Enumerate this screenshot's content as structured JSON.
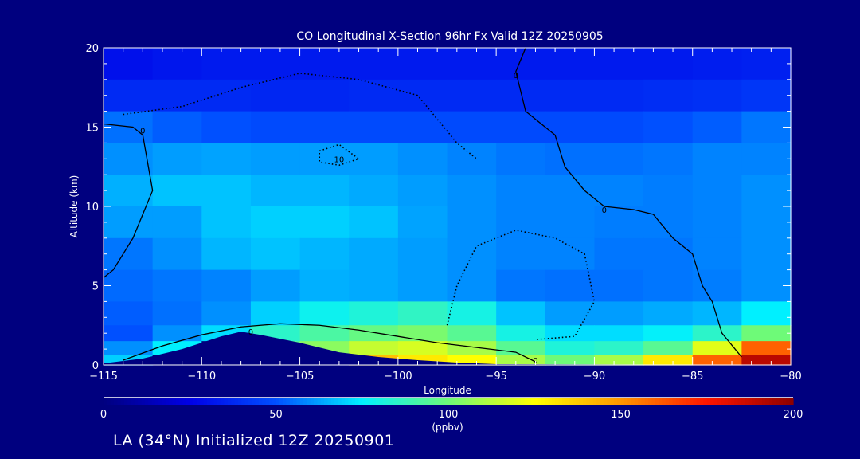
{
  "chart_data": {
    "type": "heatmap",
    "title": "CO Longitudinal X-Section 96hr  Fx Valid 12Z 20250905",
    "xlabel": "Longitude",
    "ylabel": "Altitude (km)",
    "xlim": [
      -115,
      -80
    ],
    "ylim": [
      0,
      20
    ],
    "xticks": [
      -115,
      -110,
      -105,
      -100,
      -95,
      -90,
      -85,
      -80
    ],
    "xtick_labels": [
      "−115",
      "−110",
      "−105",
      "−100",
      "−95",
      "−90",
      "−85",
      "−80"
    ],
    "yticks": [
      0,
      5,
      10,
      15,
      20
    ],
    "ytick_labels": [
      "0",
      "5",
      "10",
      "15",
      "20"
    ],
    "x": [
      -113.75,
      -111.25,
      -108.75,
      -106.25,
      -103.75,
      -101.25,
      -98.75,
      -96.25,
      -93.75,
      -91.25,
      -88.75,
      -86.25,
      -83.75,
      -81.25
    ],
    "y": [
      19,
      17,
      15,
      13,
      11,
      9,
      7,
      5,
      3,
      2,
      1,
      0.3
    ],
    "values": [
      [
        30,
        32,
        33,
        33,
        33,
        33,
        33,
        33,
        33,
        33,
        33,
        33,
        34,
        35
      ],
      [
        38,
        38,
        38,
        37,
        37,
        38,
        38,
        38,
        38,
        38,
        38,
        39,
        40,
        42
      ],
      [
        55,
        52,
        50,
        48,
        48,
        48,
        48,
        48,
        48,
        48,
        48,
        50,
        52,
        56
      ],
      [
        60,
        62,
        63,
        62,
        62,
        62,
        60,
        58,
        56,
        55,
        55,
        56,
        58,
        58
      ],
      [
        65,
        68,
        68,
        66,
        66,
        64,
        62,
        60,
        58,
        58,
        58,
        57,
        58,
        60
      ],
      [
        62,
        62,
        68,
        70,
        70,
        68,
        63,
        60,
        58,
        58,
        57,
        57,
        58,
        60
      ],
      [
        56,
        60,
        66,
        68,
        66,
        64,
        62,
        60,
        58,
        58,
        56,
        56,
        58,
        60
      ],
      [
        54,
        56,
        58,
        62,
        65,
        64,
        62,
        60,
        56,
        55,
        55,
        56,
        57,
        60
      ],
      [
        52,
        55,
        60,
        70,
        78,
        82,
        86,
        80,
        68,
        62,
        62,
        64,
        66,
        75
      ],
      [
        50,
        60,
        72,
        85,
        92,
        98,
        102,
        95,
        80,
        72,
        72,
        76,
        85,
        100
      ],
      [
        60,
        75,
        0,
        95,
        105,
        115,
        118,
        110,
        95,
        82,
        85,
        95,
        120,
        160
      ],
      [
        70,
        0,
        0,
        0,
        0,
        140,
        130,
        125,
        110,
        100,
        110,
        130,
        160,
        190
      ]
    ],
    "terrain": {
      "lon": [
        -115,
        -113,
        -111,
        -109,
        -108,
        -107,
        -105,
        -103,
        -101,
        -99,
        -97,
        -95,
        -80
      ],
      "alt": [
        0.1,
        0.4,
        1.0,
        1.8,
        2.1,
        1.9,
        1.4,
        0.8,
        0.5,
        0.3,
        0.15,
        0.05,
        0
      ]
    },
    "contours": [
      {
        "level": "0",
        "style": "solid",
        "lon": [
          -115,
          -113.5,
          -113,
          -112.5,
          -113.5,
          -114.5,
          -115
        ],
        "alt": [
          15.2,
          15.0,
          14.5,
          11,
          8,
          6,
          5.5
        ]
      },
      {
        "level": "0",
        "style": "solid",
        "lon": [
          -93.5,
          -94,
          -93.5,
          -92,
          -91.5,
          -90.5,
          -89.5,
          -88,
          -87,
          -86,
          -85,
          -84.5,
          -84,
          -83.5,
          -82.5
        ],
        "alt": [
          20,
          18.5,
          16,
          14.5,
          12.5,
          11,
          10,
          9.8,
          9.5,
          8,
          7,
          5,
          4,
          2,
          0.5
        ]
      },
      {
        "level": "0",
        "style": "solid",
        "lon": [
          -114,
          -112,
          -110,
          -108,
          -106,
          -104,
          -102,
          -100,
          -98,
          -96,
          -94,
          -93
        ],
        "alt": [
          0.3,
          1.2,
          1.9,
          2.4,
          2.6,
          2.5,
          2.2,
          1.8,
          1.4,
          1.1,
          0.8,
          0.2
        ]
      },
      {
        "level": "-10",
        "style": "dotted",
        "lon": [
          -114,
          -111,
          -108,
          -105,
          -102,
          -99,
          -98,
          -97,
          -96
        ],
        "alt": [
          15.8,
          16.3,
          17.5,
          18.4,
          18.0,
          17.0,
          15.5,
          14.0,
          13.0
        ]
      },
      {
        "level": "-10",
        "style": "dotted",
        "lon": [
          -97.5,
          -97,
          -96,
          -94,
          -92,
          -90.5,
          -90,
          -91,
          -93
        ],
        "alt": [
          2.5,
          5,
          7.5,
          8.5,
          8.0,
          7.0,
          4.0,
          1.8,
          1.6
        ]
      },
      {
        "level": "-10",
        "style": "dotted",
        "lon": [
          -104,
          -103,
          -102,
          -103,
          -104,
          -104
        ],
        "alt": [
          13.5,
          13.9,
          13.0,
          12.6,
          12.8,
          13.5
        ]
      }
    ],
    "contour_labels": [
      "0",
      "10"
    ],
    "colorbar": {
      "ticks": [
        0,
        50,
        100,
        150,
        200
      ],
      "tick_labels": [
        "0",
        "50",
        "100",
        "150",
        "200"
      ],
      "unit": "(ppbv)",
      "range": [
        0,
        200
      ]
    },
    "subtitle": "LA (34°N) Initialized 12Z 20250901"
  },
  "colors": {
    "background": "#00007f",
    "axis": "#ffffff",
    "contour": "#000000"
  }
}
